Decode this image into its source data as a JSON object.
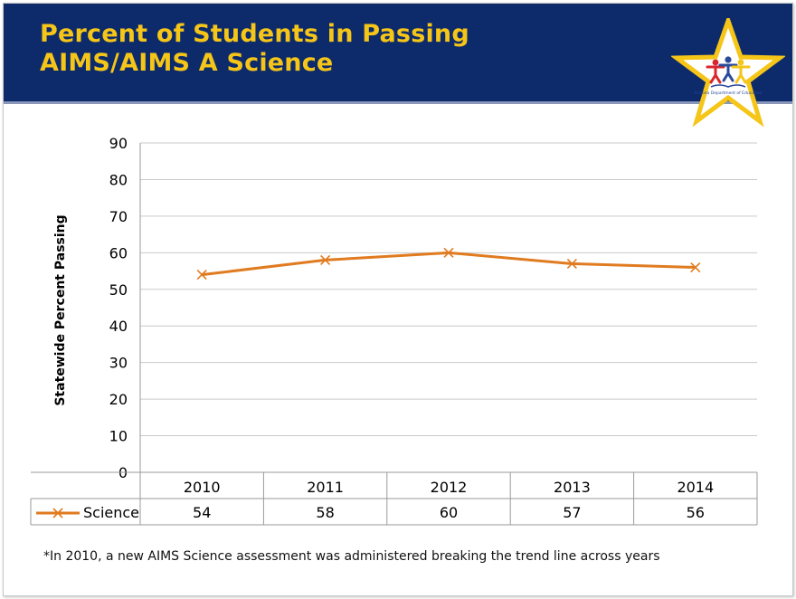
{
  "header": {
    "title_line1": "Percent of Students in Passing",
    "title_line2": "AIMS/AIMS A Science"
  },
  "logo": {
    "text": "Arizona Department of Education",
    "colors": {
      "star": "#f5c518",
      "figure_red": "#d9262c",
      "figure_blue": "#2b4a9c",
      "figure_gold": "#f5c518"
    }
  },
  "colors": {
    "header_bg": "#0d2a6b",
    "title": "#f5c518",
    "series": "#e07b20",
    "grid": "#c9c9c9"
  },
  "chart_data": {
    "type": "line",
    "title": "",
    "xlabel": "",
    "ylabel": "Statewide Percent Passing",
    "categories": [
      "2010",
      "2011",
      "2012",
      "2013",
      "2014"
    ],
    "series": [
      {
        "name": "Science",
        "values": [
          54,
          58,
          60,
          57,
          56
        ]
      }
    ],
    "ylim": [
      0,
      90
    ],
    "yticks": [
      0,
      10,
      20,
      30,
      40,
      50,
      60,
      70,
      80,
      90
    ],
    "grid": true,
    "marker": "x",
    "data_table": true
  },
  "footnote": "*In 2010, a new AIMS Science assessment was administered breaking the trend line across years"
}
